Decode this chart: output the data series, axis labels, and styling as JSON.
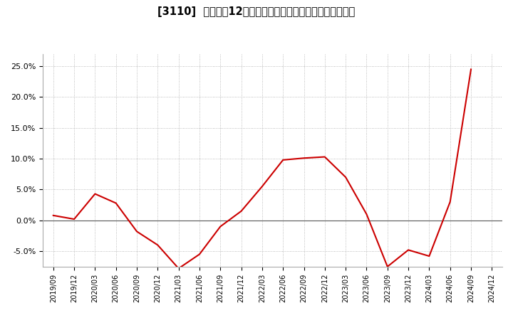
{
  "title": "[3110]  売上高の12か月移動合計の対前年同期増減率の推移",
  "line_color": "#cc0000",
  "bg_color": "#ffffff",
  "plot_bg_color": "#ffffff",
  "grid_color": "#aaaaaa",
  "zero_line_color": "#555555",
  "dates": [
    "2019/09",
    "2019/12",
    "2020/03",
    "2020/06",
    "2020/09",
    "2020/12",
    "2021/03",
    "2021/06",
    "2021/09",
    "2021/12",
    "2022/03",
    "2022/06",
    "2022/09",
    "2022/12",
    "2023/03",
    "2023/06",
    "2023/09",
    "2023/12",
    "2024/03",
    "2024/06",
    "2024/09",
    "2024/12"
  ],
  "values": [
    0.8,
    0.2,
    4.3,
    2.8,
    -1.8,
    -4.0,
    -7.8,
    -5.5,
    -1.0,
    1.5,
    5.5,
    9.8,
    10.1,
    10.3,
    7.0,
    1.0,
    -7.5,
    -4.8,
    -5.8,
    3.0,
    24.5,
    null
  ],
  "ylim": [
    -7.5,
    27
  ],
  "yticks": [
    -5,
    0,
    5,
    10,
    15,
    20,
    25
  ],
  "ytick_labels": [
    "-5.0%",
    "0.0%",
    "5.0%",
    "10.0%",
    "15.0%",
    "20.0%",
    "25.0%"
  ]
}
